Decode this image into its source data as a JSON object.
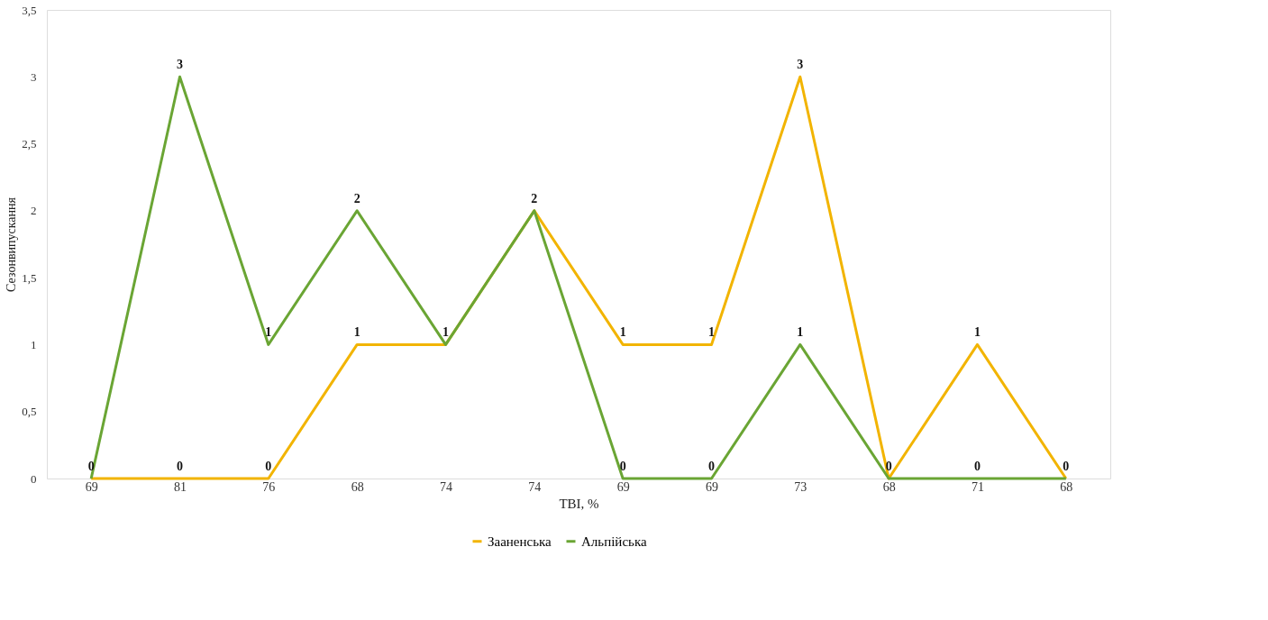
{
  "chart_data": {
    "type": "line",
    "xlabel": "TBI, %",
    "ylabel": "Сезонвипускання",
    "categories": [
      "69",
      "81",
      "76",
      "68",
      "74",
      "74",
      "69",
      "69",
      "73",
      "68",
      "71",
      "68"
    ],
    "series": [
      {
        "name": "Зааненська",
        "color": "#f2b400",
        "values": [
          0,
          0,
          0,
          1,
          1,
          2,
          1,
          1,
          3,
          0,
          1,
          0
        ]
      },
      {
        "name": "Альпійська",
        "color": "#6aa534",
        "values": [
          0,
          3,
          1,
          2,
          1,
          2,
          0,
          0,
          1,
          0,
          0,
          0
        ],
        "value_labels": [
          null,
          "3",
          "1",
          "2",
          null,
          null,
          "0",
          "0",
          "1",
          null,
          "0",
          null
        ]
      }
    ],
    "ylim": [
      0,
      3.5
    ],
    "yticks": [
      0,
      {
        "value": 0.5,
        "label": "0,5"
      },
      1,
      {
        "value": 1.5,
        "label": "1,5"
      },
      2,
      {
        "value": 2.5,
        "label": "2,5"
      },
      3,
      {
        "value": 3.5,
        "label": "3,5"
      }
    ],
    "data_labels": true,
    "grid": false,
    "legend": "bottom",
    "marker": "none",
    "line_style": "solid"
  }
}
